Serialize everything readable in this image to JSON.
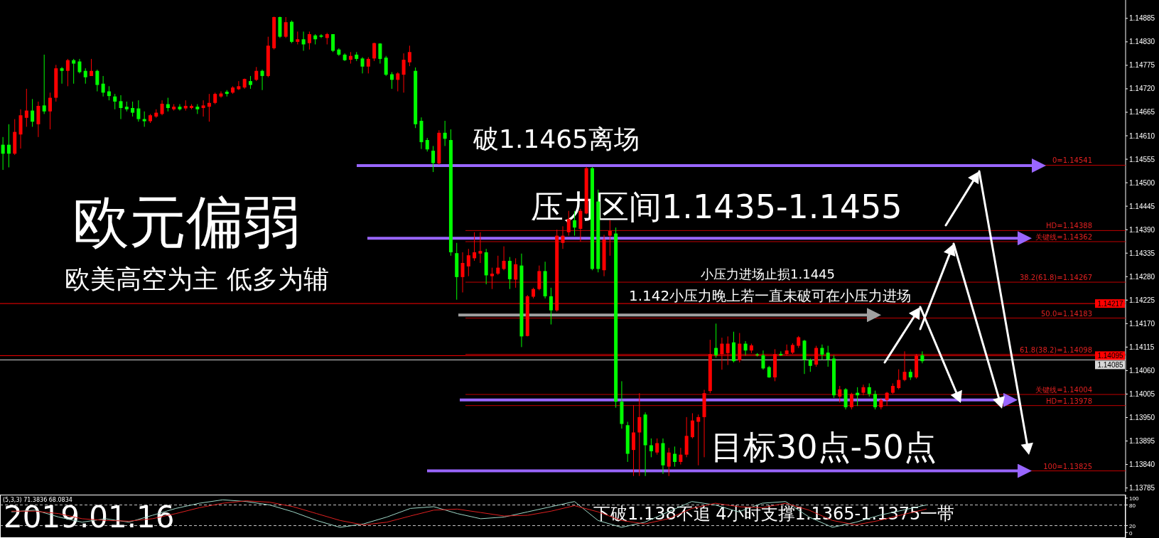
{
  "chart_data": [
    {
      "type": "candlestick",
      "title": "欧元偏弱",
      "subtitle": "欧美高空为主 低多为辅",
      "categories": [
        null,
        null,
        null,
        null,
        null,
        null,
        null,
        null,
        null,
        null,
        null,
        null,
        null,
        null,
        null,
        null,
        null,
        null,
        null,
        null,
        null,
        null,
        null,
        null,
        null,
        null,
        null,
        null,
        null,
        null,
        null,
        null,
        null,
        null,
        null,
        null,
        null,
        null,
        null,
        null,
        null,
        null,
        null,
        null,
        null,
        null,
        null,
        null,
        null,
        null,
        null,
        null,
        null,
        null,
        null,
        null,
        null,
        null,
        null,
        null,
        null,
        null,
        null,
        null,
        null,
        null,
        null,
        null,
        null,
        null,
        null,
        null,
        null,
        null,
        null,
        null,
        null,
        null,
        null,
        null,
        null,
        null,
        null,
        null,
        null,
        null,
        null,
        null,
        null,
        null,
        null,
        null,
        null,
        null,
        null,
        null,
        null,
        null,
        null,
        null,
        null,
        null,
        null,
        null,
        null,
        null,
        null,
        null,
        null,
        null,
        null,
        null,
        null,
        null,
        null,
        null,
        null,
        null,
        null,
        null,
        null,
        null,
        null,
        null,
        null,
        null,
        null,
        null,
        null,
        null,
        null,
        null,
        null,
        null,
        null,
        null,
        null,
        null,
        null,
        null,
        null,
        null,
        null,
        null,
        null,
        null,
        null,
        null,
        null,
        null,
        null,
        null,
        null,
        null,
        null,
        null,
        null,
        null,
        null,
        null,
        null,
        null,
        null,
        null,
        null,
        null,
        null,
        null,
        null,
        null,
        null,
        null,
        null,
        null,
        null,
        null,
        null,
        null,
        null,
        null,
        null,
        null,
        null,
        null,
        null,
        null,
        null,
        null,
        null,
        null,
        null
      ],
      "ohlc": [
        [
          1.14589,
          1.14607,
          1.1453,
          1.14568
        ],
        [
          1.14589,
          1.14637,
          1.14536,
          1.14568
        ],
        [
          1.14568,
          1.14649,
          1.14565,
          1.14619
        ],
        [
          1.14613,
          1.14672,
          1.1458,
          1.14658
        ],
        [
          1.14652,
          1.1472,
          1.14631,
          1.14669
        ],
        [
          1.14669,
          1.14696,
          1.14631,
          1.14643
        ],
        [
          1.14637,
          1.1469,
          1.14607,
          1.1468
        ],
        [
          1.14681,
          1.148,
          1.14661,
          1.14667
        ],
        [
          1.14667,
          1.14711,
          1.14625,
          1.14699
        ],
        [
          1.14699,
          1.14776,
          1.1469,
          1.14768
        ],
        [
          1.14768,
          1.14771,
          1.14732,
          1.14762
        ],
        [
          1.14762,
          1.1479,
          1.14726,
          1.14787
        ],
        [
          1.14787,
          1.1479,
          1.14732,
          1.14779
        ],
        [
          1.14784,
          1.1479,
          1.14756,
          1.14759
        ],
        [
          1.14762,
          1.14768,
          1.14732,
          1.14747
        ],
        [
          1.1475,
          1.1479,
          1.1475,
          1.14762
        ],
        [
          1.14762,
          1.14765,
          1.14714,
          1.14729
        ],
        [
          1.14732,
          1.1475,
          1.14702,
          1.14711
        ],
        [
          1.14714,
          1.14726,
          1.14693,
          1.14703
        ],
        [
          1.14702,
          1.14708,
          1.14672,
          1.1469
        ],
        [
          1.14691,
          1.14705,
          1.14649,
          1.14675
        ],
        [
          1.14678,
          1.1469,
          1.14667,
          1.14672
        ],
        [
          1.14675,
          1.1469,
          1.14655,
          1.14664
        ],
        [
          1.14674,
          1.14693,
          1.14643,
          1.14649
        ],
        [
          1.14649,
          1.14667,
          1.14631,
          1.14644
        ],
        [
          1.14644,
          1.14661,
          1.1464,
          1.14658
        ],
        [
          1.14655,
          1.14672,
          1.14652,
          1.14664
        ],
        [
          1.14661,
          1.14693,
          1.14658,
          1.14685
        ],
        [
          1.14684,
          1.14699,
          1.14667,
          1.14675
        ],
        [
          1.14672,
          1.14684,
          1.14669,
          1.14678
        ],
        [
          1.14678,
          1.14684,
          1.14669,
          1.14672
        ],
        [
          1.14674,
          1.14693,
          1.14669,
          1.1468
        ],
        [
          1.14675,
          1.14684,
          1.14672,
          1.1468
        ],
        [
          1.14678,
          1.14684,
          1.14661,
          1.14672
        ],
        [
          1.14675,
          1.14693,
          1.14655,
          1.14681
        ],
        [
          1.14678,
          1.14708,
          1.14643,
          1.14687
        ],
        [
          1.14687,
          1.14711,
          1.14684,
          1.14708
        ],
        [
          1.14702,
          1.14714,
          1.14699,
          1.14709
        ],
        [
          1.14713,
          1.14717,
          1.14702,
          1.14708
        ],
        [
          1.14711,
          1.14726,
          1.14708,
          1.14723
        ],
        [
          1.14719,
          1.14738,
          1.14717,
          1.14726
        ],
        [
          1.14723,
          1.14744,
          1.1472,
          1.14743
        ],
        [
          1.14738,
          1.1475,
          1.1472,
          1.14729
        ],
        [
          1.14741,
          1.14771,
          1.14738,
          1.14762
        ],
        [
          1.14762,
          1.14765,
          1.14717,
          1.1475
        ],
        [
          1.1475,
          1.14842,
          1.14747,
          1.14821
        ],
        [
          1.14815,
          1.14889,
          1.14812,
          1.14888
        ],
        [
          1.14888,
          1.14889,
          1.14839,
          1.14842
        ],
        [
          1.14842,
          1.14888,
          1.14839,
          1.14876
        ],
        [
          1.14877,
          1.1488,
          1.14827,
          1.1483
        ],
        [
          1.1483,
          1.14854,
          1.14824,
          1.14836
        ],
        [
          1.14836,
          1.14854,
          1.14809,
          1.14824
        ],
        [
          1.14827,
          1.14854,
          1.14812,
          1.14848
        ],
        [
          1.14845,
          1.14848,
          1.14824,
          1.14836
        ],
        [
          1.14845,
          1.14848,
          1.14839,
          1.14842
        ],
        [
          1.14839,
          1.14851,
          1.14824,
          1.14848
        ],
        [
          1.14848,
          1.14848,
          1.14806,
          1.14809
        ],
        [
          1.14812,
          1.14815,
          1.14797,
          1.148
        ],
        [
          1.148,
          1.14803,
          1.14785,
          1.14787
        ],
        [
          1.14788,
          1.14806,
          1.14779,
          1.14797
        ],
        [
          1.148,
          1.14806,
          1.14785,
          1.1479
        ],
        [
          1.14791,
          1.14794,
          1.14756,
          1.14772
        ],
        [
          1.14772,
          1.14794,
          1.14756,
          1.1479
        ],
        [
          1.14791,
          1.14828,
          1.14785,
          1.14827
        ],
        [
          1.14826,
          1.14827,
          1.14779,
          1.1479
        ],
        [
          1.14793,
          1.14797,
          1.1475,
          1.14753
        ],
        [
          1.14754,
          1.14759,
          1.1472,
          1.14741
        ],
        [
          1.14741,
          1.14759,
          1.14714,
          1.14756
        ],
        [
          1.14753,
          1.14803,
          1.14711,
          1.14788
        ],
        [
          1.14782,
          1.14821,
          1.14773,
          1.14806
        ],
        [
          1.14762,
          1.1477,
          1.14628,
          1.14637
        ],
        [
          1.14645,
          1.14653,
          1.14579,
          1.14595
        ],
        [
          1.146,
          1.14605,
          1.14573,
          1.14578
        ],
        [
          1.14575,
          1.14586,
          1.14525,
          1.14546
        ],
        [
          1.14545,
          1.14623,
          1.14542,
          1.14617
        ],
        [
          1.14617,
          1.14645,
          1.14586,
          1.14603
        ],
        [
          1.146,
          1.14625,
          1.14329,
          1.14337
        ],
        [
          1.14335,
          1.14359,
          1.14226,
          1.14279
        ],
        [
          1.14279,
          1.14337,
          1.14243,
          1.14312
        ],
        [
          1.14304,
          1.14345,
          1.14281,
          1.1433
        ],
        [
          1.14323,
          1.14384,
          1.14317,
          1.14337
        ],
        [
          1.14334,
          1.14384,
          1.14312,
          1.1434
        ],
        [
          1.14337,
          1.14345,
          1.14262,
          1.14283
        ],
        [
          1.14281,
          1.14301,
          1.14251,
          1.14287
        ],
        [
          1.14287,
          1.14329,
          1.14284,
          1.14301
        ],
        [
          1.14298,
          1.14351,
          1.14295,
          1.14317
        ],
        [
          1.14317,
          1.14326,
          1.14251,
          1.14274
        ],
        [
          1.14273,
          1.14323,
          1.14254,
          1.14309
        ],
        [
          1.14306,
          1.14334,
          1.14115,
          1.1414
        ],
        [
          1.14141,
          1.14237,
          1.1414,
          1.14234
        ],
        [
          1.14233,
          1.14254,
          1.14229,
          1.14251
        ],
        [
          1.14251,
          1.14306,
          1.14248,
          1.14293
        ],
        [
          1.14293,
          1.14315,
          1.14229,
          1.14234
        ],
        [
          1.14234,
          1.14254,
          1.14168,
          1.14201
        ],
        [
          1.14201,
          1.1439,
          1.14198,
          1.14376
        ],
        [
          1.14359,
          1.14398,
          1.14345,
          1.14376
        ],
        [
          1.14384,
          1.14434,
          1.14376,
          1.14415
        ],
        [
          1.14412,
          1.14434,
          1.14376,
          1.14395
        ],
        [
          1.14392,
          1.14439,
          1.14362,
          1.14434
        ],
        [
          1.14428,
          1.14537,
          1.14426,
          1.14534
        ],
        [
          1.14534,
          1.14537,
          1.14295,
          1.14298
        ],
        [
          1.14456,
          1.14484,
          1.1429,
          1.14298
        ],
        [
          1.14295,
          1.14378,
          1.14281,
          1.14367
        ],
        [
          1.14376,
          1.14412,
          1.14329,
          1.14387
        ],
        [
          1.14381,
          1.14395,
          1.13973,
          1.13987
        ],
        [
          1.13987,
          1.14035,
          1.13924,
          1.13935
        ],
        [
          1.13932,
          1.1394,
          1.13846,
          1.13865
        ],
        [
          1.13874,
          1.13979,
          1.13813,
          1.13915
        ],
        [
          1.13915,
          1.14007,
          1.13813,
          1.13951
        ],
        [
          1.13957,
          1.13962,
          1.13813,
          1.13885
        ],
        [
          1.13885,
          1.13901,
          1.13857,
          1.13871
        ],
        [
          1.13868,
          1.13901,
          1.13863,
          1.1389
        ],
        [
          1.1389,
          1.13901,
          1.13818,
          1.13838
        ],
        [
          1.13835,
          1.13879,
          1.13813,
          1.13868
        ],
        [
          1.13865,
          1.13882,
          1.13835,
          1.13846
        ],
        [
          1.13846,
          1.13879,
          1.1384,
          1.13863
        ],
        [
          1.13863,
          1.13951,
          1.13857,
          1.13907
        ],
        [
          1.13904,
          1.1396,
          1.13901,
          1.13943
        ],
        [
          1.1394,
          1.13957,
          1.13838,
          1.13951
        ],
        [
          1.13951,
          1.14015,
          1.13857,
          1.14007
        ],
        [
          1.14012,
          1.14132,
          1.14007,
          1.14098
        ],
        [
          1.14113,
          1.1417,
          1.1409,
          1.14096
        ],
        [
          1.14098,
          1.14137,
          1.14062,
          1.14123
        ],
        [
          1.14101,
          1.1414,
          1.14073,
          1.14123
        ],
        [
          1.14126,
          1.14151,
          1.14079,
          1.14082
        ],
        [
          1.14084,
          1.14148,
          1.14079,
          1.14123
        ],
        [
          1.14123,
          1.14129,
          1.14096,
          1.14107
        ],
        [
          1.14107,
          1.14123,
          1.14101,
          1.14119
        ],
        [
          1.14098,
          1.14101,
          1.14093,
          1.14096
        ],
        [
          1.14096,
          1.14107,
          1.14062,
          1.14065
        ],
        [
          1.14068,
          1.14071,
          1.14043,
          1.14044
        ],
        [
          1.14044,
          1.1411,
          1.14035,
          1.14098
        ],
        [
          1.14099,
          1.14105,
          1.14094,
          1.14096
        ],
        [
          1.14099,
          1.14121,
          1.14096,
          1.14107
        ],
        [
          1.14102,
          1.14124,
          1.14099,
          1.1412
        ],
        [
          1.14118,
          1.14141,
          1.14113,
          1.14138
        ],
        [
          1.1413,
          1.14132,
          1.14052,
          1.14085
        ],
        [
          1.14085,
          1.14088,
          1.14057,
          1.14071
        ],
        [
          1.14074,
          1.14118,
          1.14069,
          1.14113
        ],
        [
          1.14113,
          1.14121,
          1.14085,
          1.14097
        ],
        [
          1.14102,
          1.14118,
          1.14069,
          1.14086
        ],
        [
          1.14088,
          1.14096,
          1.13996,
          1.14002
        ],
        [
          1.13999,
          1.14024,
          1.13985,
          1.14016
        ],
        [
          1.14016,
          1.14019,
          1.13969,
          1.13974
        ],
        [
          1.13974,
          1.14008,
          1.13969,
          1.14005
        ],
        [
          1.14008,
          1.14021,
          1.13977,
          1.14002
        ],
        [
          1.14008,
          1.14027,
          1.14002,
          1.14021
        ],
        [
          1.14021,
          1.1403,
          1.13999,
          1.14005
        ],
        [
          1.14005,
          1.14013,
          1.13969,
          1.13974
        ],
        [
          1.13974,
          1.13996,
          1.13969,
          1.13991
        ],
        [
          1.13991,
          1.1401,
          1.13977,
          1.14008
        ],
        [
          1.14008,
          1.1403,
          1.14005,
          1.14024
        ],
        [
          1.14019,
          1.14063,
          1.14016,
          1.14038
        ],
        [
          1.14038,
          1.14105,
          1.14035,
          1.14057
        ],
        [
          1.14057,
          1.14063,
          1.14038,
          1.14044
        ],
        [
          1.14044,
          1.14099,
          1.14041,
          1.14096
        ],
        [
          1.14096,
          1.14105,
          1.14077,
          1.14082
        ],
        null,
        null,
        null,
        null,
        null,
        null,
        null,
        null,
        null,
        null,
        null,
        null,
        null,
        null,
        null,
        null,
        null,
        null,
        null,
        null,
        null,
        null,
        null,
        null,
        null,
        null,
        null,
        null,
        null,
        null,
        null,
        null,
        null,
        null
      ],
      "ylim": [
        1.13776,
        1.14928
      ],
      "yticks": [
        1.13785,
        {
          "value": 1.1384,
          "label": "1.13840"
        },
        1.13895,
        {
          "value": 1.1395,
          "label": "1.13950"
        },
        1.14005,
        {
          "value": 1.1406,
          "label": "1.14060"
        },
        1.14115,
        {
          "value": 1.1417,
          "label": "1.14170"
        },
        1.14225,
        {
          "value": 1.1428,
          "label": "1.14280"
        },
        1.14335,
        {
          "value": 1.1439,
          "label": "1.14390"
        },
        1.14445,
        {
          "value": 1.145,
          "label": "1.14500"
        },
        1.14555,
        {
          "value": 1.1461,
          "label": "1.14610"
        },
        1.14665,
        {
          "value": 1.1472,
          "label": "1.14720"
        },
        1.14775,
        {
          "value": 1.1483,
          "label": "1.14830"
        },
        1.14885
      ],
      "tick_labels": "y",
      "ref_lines": [
        {
          "axis": "y",
          "value": 1.14541,
          "color": "#c00000"
        },
        {
          "axis": "y",
          "value": 1.14388,
          "color": "#c00000"
        },
        {
          "axis": "y",
          "value": 1.14362,
          "color": "#c00000"
        },
        {
          "axis": "y",
          "value": 1.14267,
          "color": "#c00000"
        },
        {
          "axis": "y",
          "value": 1.14183,
          "color": "#c00000"
        },
        {
          "axis": "y",
          "value": 1.14098,
          "color": "#c00000"
        },
        {
          "axis": "y",
          "value": 1.14004,
          "color": "#c00000"
        },
        {
          "axis": "y",
          "value": 1.13978,
          "color": "#c00000"
        },
        {
          "axis": "y",
          "value": 1.13825,
          "color": "#c00000"
        },
        {
          "axis": "y",
          "value": 1.14217,
          "label": "1.14217",
          "color": "#ff0000"
        },
        {
          "axis": "y",
          "value": 1.14095,
          "label": "1.14095",
          "color": "#ff0000"
        },
        {
          "axis": "y",
          "value": 1.14085,
          "label": "1.14085",
          "color": "#d8d8d8"
        },
        {
          "axis": "y",
          "value": 1.1454,
          "color": "#9966ff"
        },
        {
          "axis": "y",
          "value": 1.1437,
          "color": "#9966ff"
        },
        {
          "axis": "y",
          "value": 1.13991,
          "color": "#9966ff"
        },
        {
          "axis": "y",
          "value": 1.13825,
          "color": "#9966ff"
        },
        {
          "axis": "y",
          "value": 1.1419,
          "color": "#a0a0a0"
        }
      ],
      "annotations": [
        "破1.1465离场",
        "压力区间1.1435-1.1455",
        "小压力进场止损1.1445",
        "1.142小压力晚上若一直未破可在小压力进场",
        "目标30点-50点",
        {
          "text": "0=1.14541",
          "y": 1.14541
        },
        {
          "text": "HD=1.14388",
          "y": 1.14388
        },
        {
          "text": "关键线=1.14362",
          "y": 1.14362
        },
        {
          "text": "38.2(61.8)=1.14267",
          "y": 1.14267
        },
        {
          "text": "50.0=1.14183",
          "y": 1.14183
        },
        {
          "text": "61.8(38.2)=1.14098",
          "y": 1.14098
        },
        {
          "text": "关键线=1.14004",
          "y": 1.14004
        },
        {
          "text": "HD=1.13978",
          "y": 1.13978
        },
        {
          "text": "100=1.13825",
          "y": 1.13825
        }
      ]
    },
    {
      "type": "line",
      "title": "(5,3,3) 71.3836 68.0834",
      "categories": [
        null,
        null,
        null,
        null,
        null,
        null,
        null,
        null,
        null,
        null,
        null,
        null,
        null,
        null,
        null,
        null,
        null,
        null,
        null,
        null,
        null,
        null,
        null,
        null,
        null,
        null,
        null,
        null,
        null,
        null,
        null,
        null,
        null,
        null,
        null,
        null,
        null,
        null,
        null,
        null,
        null,
        null,
        null,
        null,
        null,
        null,
        null,
        null
      ],
      "series": [
        {
          "color": "#9fd8c8",
          "values": [
            60,
            65,
            45,
            30,
            40,
            30,
            50,
            70,
            85,
            95,
            90,
            80,
            60,
            35,
            15,
            25,
            45,
            70,
            75,
            55,
            40,
            45,
            60,
            75,
            90,
            35,
            15,
            30,
            60,
            90,
            80,
            60,
            85,
            90,
            45,
            15,
            30,
            50,
            65,
            80,
            null,
            null,
            null,
            null,
            null,
            null,
            null,
            null
          ]
        },
        {
          "color": "#e02020",
          "values": [
            62,
            62,
            55,
            40,
            35,
            33,
            40,
            55,
            72,
            85,
            92,
            88,
            75,
            55,
            35,
            22,
            30,
            48,
            65,
            68,
            58,
            48,
            50,
            62,
            78,
            60,
            35,
            25,
            40,
            70,
            85,
            75,
            72,
            85,
            65,
            35,
            22,
            35,
            52,
            68,
            null,
            null,
            null,
            null,
            null,
            null,
            null,
            null
          ]
        }
      ],
      "ylim": [
        -16,
        110
      ],
      "yticks": [
        0,
        20,
        80,
        100
      ],
      "tick_labels": "y",
      "ref_lines": [
        {
          "axis": "y",
          "value": 20,
          "line_style": "dashed",
          "color": "#c8c8c8"
        },
        {
          "axis": "y",
          "value": 80,
          "line_style": "dashed",
          "color": "#c8c8c8"
        }
      ],
      "annotations": [
        "2019.01.16",
        "下破1.138不追 4小时支撑1.1365-1.1375一带"
      ]
    }
  ]
}
